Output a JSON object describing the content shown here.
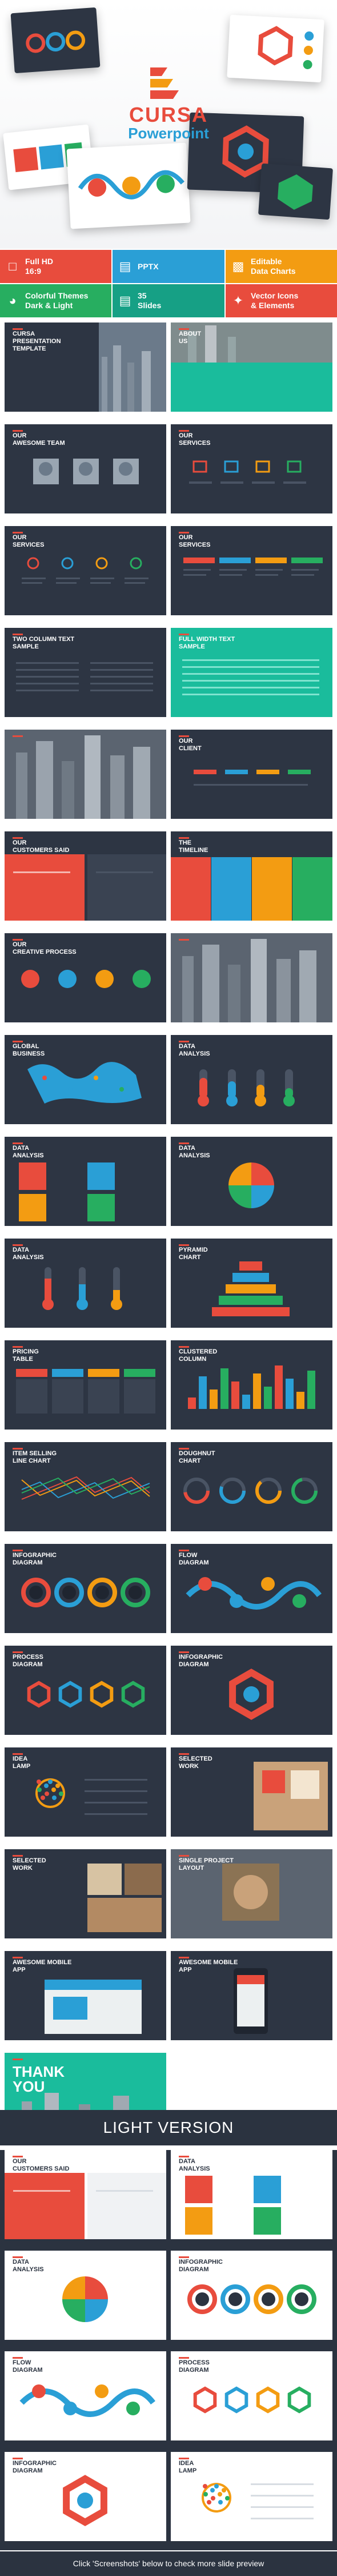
{
  "brand": {
    "title": "CURSA",
    "subtitle": "Powerpoint"
  },
  "features": [
    {
      "icon": "monitor-icon",
      "text": "Full HD\n16:9",
      "color": "#e84c3d"
    },
    {
      "icon": "folder-icon",
      "text": "PPTX",
      "color": "#2a9fd6"
    },
    {
      "icon": "chart-icon",
      "text": "Editable\nData Charts",
      "color": "#f39c12"
    },
    {
      "icon": "palette-icon",
      "text": "Colorful Themes\nDark & Light",
      "color": "#27ae60"
    },
    {
      "icon": "slides-icon",
      "text": "35\nSlides",
      "color": "#16a085"
    },
    {
      "icon": "vector-icon",
      "text": "Vector Icons\n& Elements",
      "color": "#e84c3d"
    }
  ],
  "slides_dark": [
    {
      "title": "CURSA PRESENTATION TEMPLATE",
      "kind": "cover"
    },
    {
      "title": "ABOUT\nUS",
      "kind": "photo"
    },
    {
      "title": "OUR\nAWESOME TEAM",
      "kind": "team"
    },
    {
      "title": "OUR\nSERVICES",
      "kind": "icons"
    },
    {
      "title": "OUR\nSERVICES",
      "kind": "cols"
    },
    {
      "title": "OUR\nSERVICES",
      "kind": "bars"
    },
    {
      "title": "TWO COLUMN TEXT\nSAMPLE",
      "kind": "text"
    },
    {
      "title": "FULL WIDTH TEXT\nSAMPLE",
      "kind": "teal"
    },
    {
      "title": "",
      "kind": "city"
    },
    {
      "title": "OUR\nCLIENT",
      "kind": "client"
    },
    {
      "title": "OUR\nCUSTOMERS SAID",
      "kind": "quote"
    },
    {
      "title": "THE\nTIMELINE",
      "kind": "timeline"
    },
    {
      "title": "OUR\nCREATIVE PROCESS",
      "kind": "process"
    },
    {
      "title": "",
      "kind": "city"
    },
    {
      "title": "GLOBAL\nBUSINESS",
      "kind": "map"
    },
    {
      "title": "DATA\nANALYSIS",
      "kind": "thermo"
    },
    {
      "title": "DATA\nANALYSIS",
      "kind": "squares"
    },
    {
      "title": "DATA\nANALYSIS",
      "kind": "circle"
    },
    {
      "title": "DATA\nANALYSIS",
      "kind": "temps"
    },
    {
      "title": "PYRAMID\nCHART",
      "kind": "pyramid"
    },
    {
      "title": "PRICING\nTABLE",
      "kind": "pricing"
    },
    {
      "title": "CLUSTERED\nCOLUMN",
      "kind": "columns"
    },
    {
      "title": "ITEM SELLING\nLINE CHART",
      "kind": "line"
    },
    {
      "title": "DOUGHNUT\nCHART",
      "kind": "doughnut"
    },
    {
      "title": "INFOGRAPHIC\nDIAGRAM",
      "kind": "wave"
    },
    {
      "title": "FLOW\nDIAGRAM",
      "kind": "flow"
    },
    {
      "title": "PROCESS\nDIAGRAM",
      "kind": "hex"
    },
    {
      "title": "INFOGRAPHIC\nDIAGRAM",
      "kind": "hexring"
    },
    {
      "title": "IDEA\nLAMP",
      "kind": "lamp"
    },
    {
      "title": "SELECTED\nWORK",
      "kind": "work"
    },
    {
      "title": "SELECTED\nWORK",
      "kind": "work2"
    },
    {
      "title": "SINGLE PROJECT\nLAYOUT",
      "kind": "single"
    },
    {
      "title": "AWESOME MOBILE\nAPP",
      "kind": "app"
    },
    {
      "title": "AWESOME MOBILE\nAPP",
      "kind": "app2"
    },
    {
      "title": "THANK\nYOU",
      "kind": "thanks"
    }
  ],
  "light_heading": "LIGHT VERSION",
  "slides_light": [
    {
      "title": "OUR\nCUSTOMERS SAID",
      "kind": "quote"
    },
    {
      "title": "DATA\nANALYSIS",
      "kind": "squares"
    },
    {
      "title": "DATA\nANALYSIS",
      "kind": "circle"
    },
    {
      "title": "INFOGRAPHIC\nDIAGRAM",
      "kind": "wave"
    },
    {
      "title": "FLOW\nDIAGRAM",
      "kind": "flow"
    },
    {
      "title": "PROCESS\nDIAGRAM",
      "kind": "hex"
    },
    {
      "title": "INFOGRAPHIC\nDIAGRAM",
      "kind": "hexring"
    },
    {
      "title": "IDEA\nLAMP",
      "kind": "lamp"
    }
  ],
  "footer": "Click 'Screenshots' below to check more slide preview",
  "colors": {
    "red": "#e84c3d",
    "blue": "#2a9fd6",
    "orange": "#f39c12",
    "green": "#27ae60",
    "teal": "#1abc9c",
    "dark": "#2d3543"
  }
}
